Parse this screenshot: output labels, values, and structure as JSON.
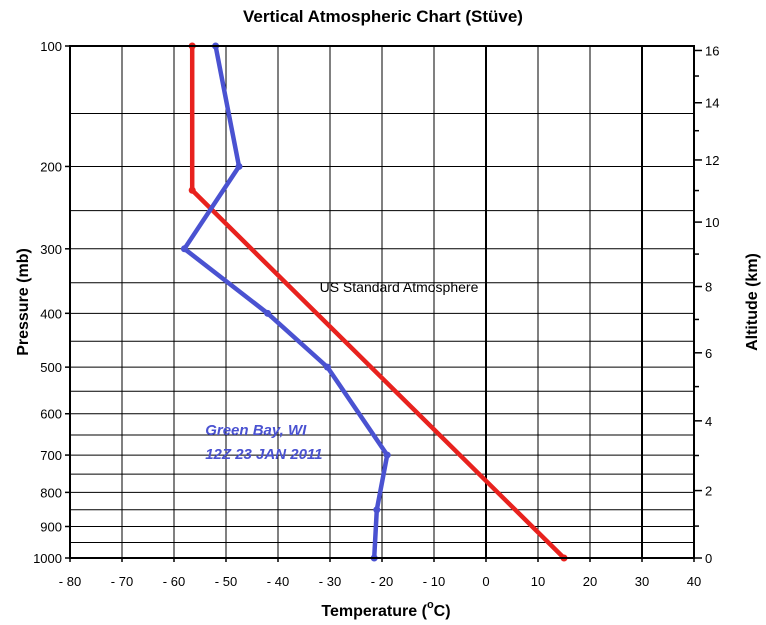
{
  "chart_data": {
    "type": "line",
    "title": "Vertical Atmospheric Chart (Stüve)",
    "xlabel": "Temperature (°C)",
    "xlabel_main": "Temperature (",
    "xlabel_unit_sup": "o",
    "xlabel_unit": "C)",
    "ylabel": "Pressure (mb)",
    "y2label": "Altitude (km)",
    "xlim": [
      -80,
      40
    ],
    "ylim": [
      1000,
      100
    ],
    "y_scale": "stuve (pressure^0.286)",
    "x_ticks": [
      -80,
      -70,
      -60,
      -50,
      -40,
      -30,
      -20,
      -10,
      0,
      10,
      20,
      30,
      40
    ],
    "x_tick_labels": [
      "- 80",
      "- 70",
      "- 60",
      "- 50",
      "- 40",
      "- 30",
      "- 20",
      "- 10",
      "0",
      "10",
      "20",
      "30",
      "40"
    ],
    "y_ticks": [
      100,
      200,
      300,
      400,
      500,
      600,
      700,
      800,
      900,
      1000
    ],
    "y_tick_labels": [
      "100",
      "200",
      "300",
      "400",
      "500",
      "600",
      "700",
      "800",
      "900",
      "1000"
    ],
    "y2_ticks": [
      16,
      14,
      12,
      10,
      8,
      6,
      4,
      2,
      0
    ],
    "y2_tick_labels": [
      "16",
      "14",
      "12",
      "10",
      "8",
      "6",
      "4",
      "2",
      "0"
    ],
    "h_grid_pressures": [
      100,
      150,
      200,
      250,
      300,
      350,
      400,
      450,
      500,
      550,
      600,
      650,
      700,
      750,
      800,
      850,
      900,
      950,
      1000
    ],
    "grid": true,
    "series": [
      {
        "name": "US Standard Atmosphere",
        "color": "#e8221e",
        "points": [
          {
            "t": 15.0,
            "p": 1000
          },
          {
            "t": -56.5,
            "p": 226
          },
          {
            "t": -56.5,
            "p": 100
          }
        ]
      },
      {
        "name": "Green Bay, WI 12Z 23 JAN 2011",
        "color": "#4a52d1",
        "points": [
          {
            "t": -21.5,
            "p": 1000
          },
          {
            "t": -21.0,
            "p": 850
          },
          {
            "t": -19.0,
            "p": 700
          },
          {
            "t": -30.5,
            "p": 500
          },
          {
            "t": -42.0,
            "p": 400
          },
          {
            "t": -58.0,
            "p": 300
          },
          {
            "t": -47.5,
            "p": 200
          },
          {
            "t": -52.0,
            "p": 100
          }
        ]
      }
    ],
    "annotations": [
      {
        "text": "US Standard Atmosphere",
        "t": -32,
        "p": 365
      },
      {
        "text": "Green Bay, WI",
        "t": -54,
        "p": 650
      },
      {
        "text": "12Z 23 JAN 2011",
        "t": -54,
        "p": 710
      }
    ]
  }
}
